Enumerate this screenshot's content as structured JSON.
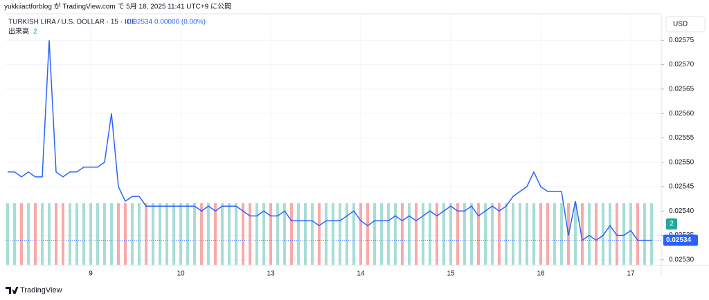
{
  "header": {
    "publish_note": "yukkiiactforblog が TradingView.com で 5月 18, 2025 11:41 UTC+9 に公開",
    "logo": "TradingView",
    "currency_button": "USD"
  },
  "chart_data": {
    "type": "line",
    "title": "TURKISH LIRA / U.S. DOLLAR · 15 · ICE",
    "change": "0.00000 (0.00%)",
    "categories": [
      null,
      null,
      null,
      null,
      null,
      null,
      null,
      null,
      null,
      null,
      null,
      null,
      "9",
      null,
      null,
      null,
      null,
      null,
      null,
      null,
      null,
      null,
      null,
      null,
      null,
      "10",
      null,
      null,
      null,
      null,
      null,
      null,
      null,
      null,
      null,
      null,
      null,
      null,
      "13",
      null,
      null,
      null,
      null,
      null,
      null,
      null,
      null,
      null,
      null,
      null,
      null,
      "14",
      null,
      null,
      null,
      null,
      null,
      null,
      null,
      null,
      null,
      null,
      null,
      null,
      "15",
      null,
      null,
      null,
      null,
      null,
      null,
      null,
      null,
      null,
      null,
      null,
      null,
      "16",
      null,
      null,
      null,
      null,
      null,
      null,
      null,
      null,
      null,
      null,
      null,
      null,
      "17",
      null,
      null,
      null
    ],
    "series": [
      {
        "color": "#2962ff",
        "values": [
          0.02548,
          0.02548,
          0.02547,
          0.02548,
          0.02547,
          0.02547,
          0.02575,
          0.02548,
          0.02547,
          0.02548,
          0.02548,
          0.02549,
          0.02549,
          0.02549,
          0.0255,
          0.0256,
          0.02545,
          0.02542,
          0.02543,
          0.02543,
          0.02541,
          0.02541,
          0.02541,
          0.02541,
          0.02541,
          0.02541,
          0.02541,
          0.02541,
          0.0254,
          0.02541,
          0.0254,
          0.02541,
          0.02541,
          0.02541,
          0.0254,
          0.02539,
          0.02539,
          0.0254,
          0.02539,
          0.02539,
          0.0254,
          0.02538,
          0.02538,
          0.02538,
          0.02538,
          0.02537,
          0.02538,
          0.02538,
          0.02538,
          0.02539,
          0.0254,
          0.02538,
          0.02537,
          0.02538,
          0.02538,
          0.02538,
          0.02539,
          0.02538,
          0.02539,
          0.02538,
          0.02539,
          0.0254,
          0.02539,
          0.0254,
          0.02541,
          0.0254,
          0.0254,
          0.02541,
          0.02539,
          0.0254,
          0.02541,
          0.0254,
          0.02541,
          0.02543,
          0.02544,
          0.02545,
          0.02548,
          0.02545,
          0.02544,
          0.02544,
          0.02544,
          0.02535,
          0.02542,
          0.02534,
          0.02535,
          0.02534,
          0.02535,
          0.02537,
          0.02535,
          0.02535,
          0.02536,
          0.02534,
          0.02534,
          0.02534
        ]
      }
    ],
    "volume": {
      "name": "出来高",
      "up_color": "#a7ddd6",
      "down_color": "#f7aaa9",
      "values": [
        2,
        2,
        2,
        2,
        2,
        2,
        2,
        2,
        2,
        2,
        2,
        2,
        2,
        2,
        2,
        2,
        2,
        2,
        2,
        2,
        2,
        2,
        2,
        2,
        2,
        2,
        2,
        2,
        2,
        2,
        2,
        2,
        2,
        2,
        2,
        2,
        2,
        2,
        2,
        2,
        2,
        2,
        2,
        2,
        2,
        2,
        2,
        2,
        2,
        2,
        2,
        2,
        2,
        2,
        2,
        2,
        2,
        2,
        2,
        2,
        2,
        2,
        2,
        2,
        2,
        2,
        2,
        2,
        2,
        2,
        2,
        2,
        2,
        2,
        2,
        2,
        2,
        2,
        2,
        2,
        2,
        2,
        2,
        2,
        2,
        2,
        2,
        2,
        2,
        2,
        2,
        2,
        2,
        2
      ]
    },
    "ylim": [
      0.02527,
      0.0258
    ],
    "yticks": [
      {
        "value": 0.0253,
        "label": "0.02530"
      },
      0.02535,
      {
        "value": 0.0254,
        "label": "0.02540"
      },
      0.02545,
      {
        "value": 0.0255,
        "label": "0.02550"
      },
      0.02555,
      {
        "value": 0.0256,
        "label": "0.02560"
      },
      0.02565,
      {
        "value": 0.0257,
        "label": "0.02570"
      },
      0.02575
    ],
    "grid": true
  }
}
